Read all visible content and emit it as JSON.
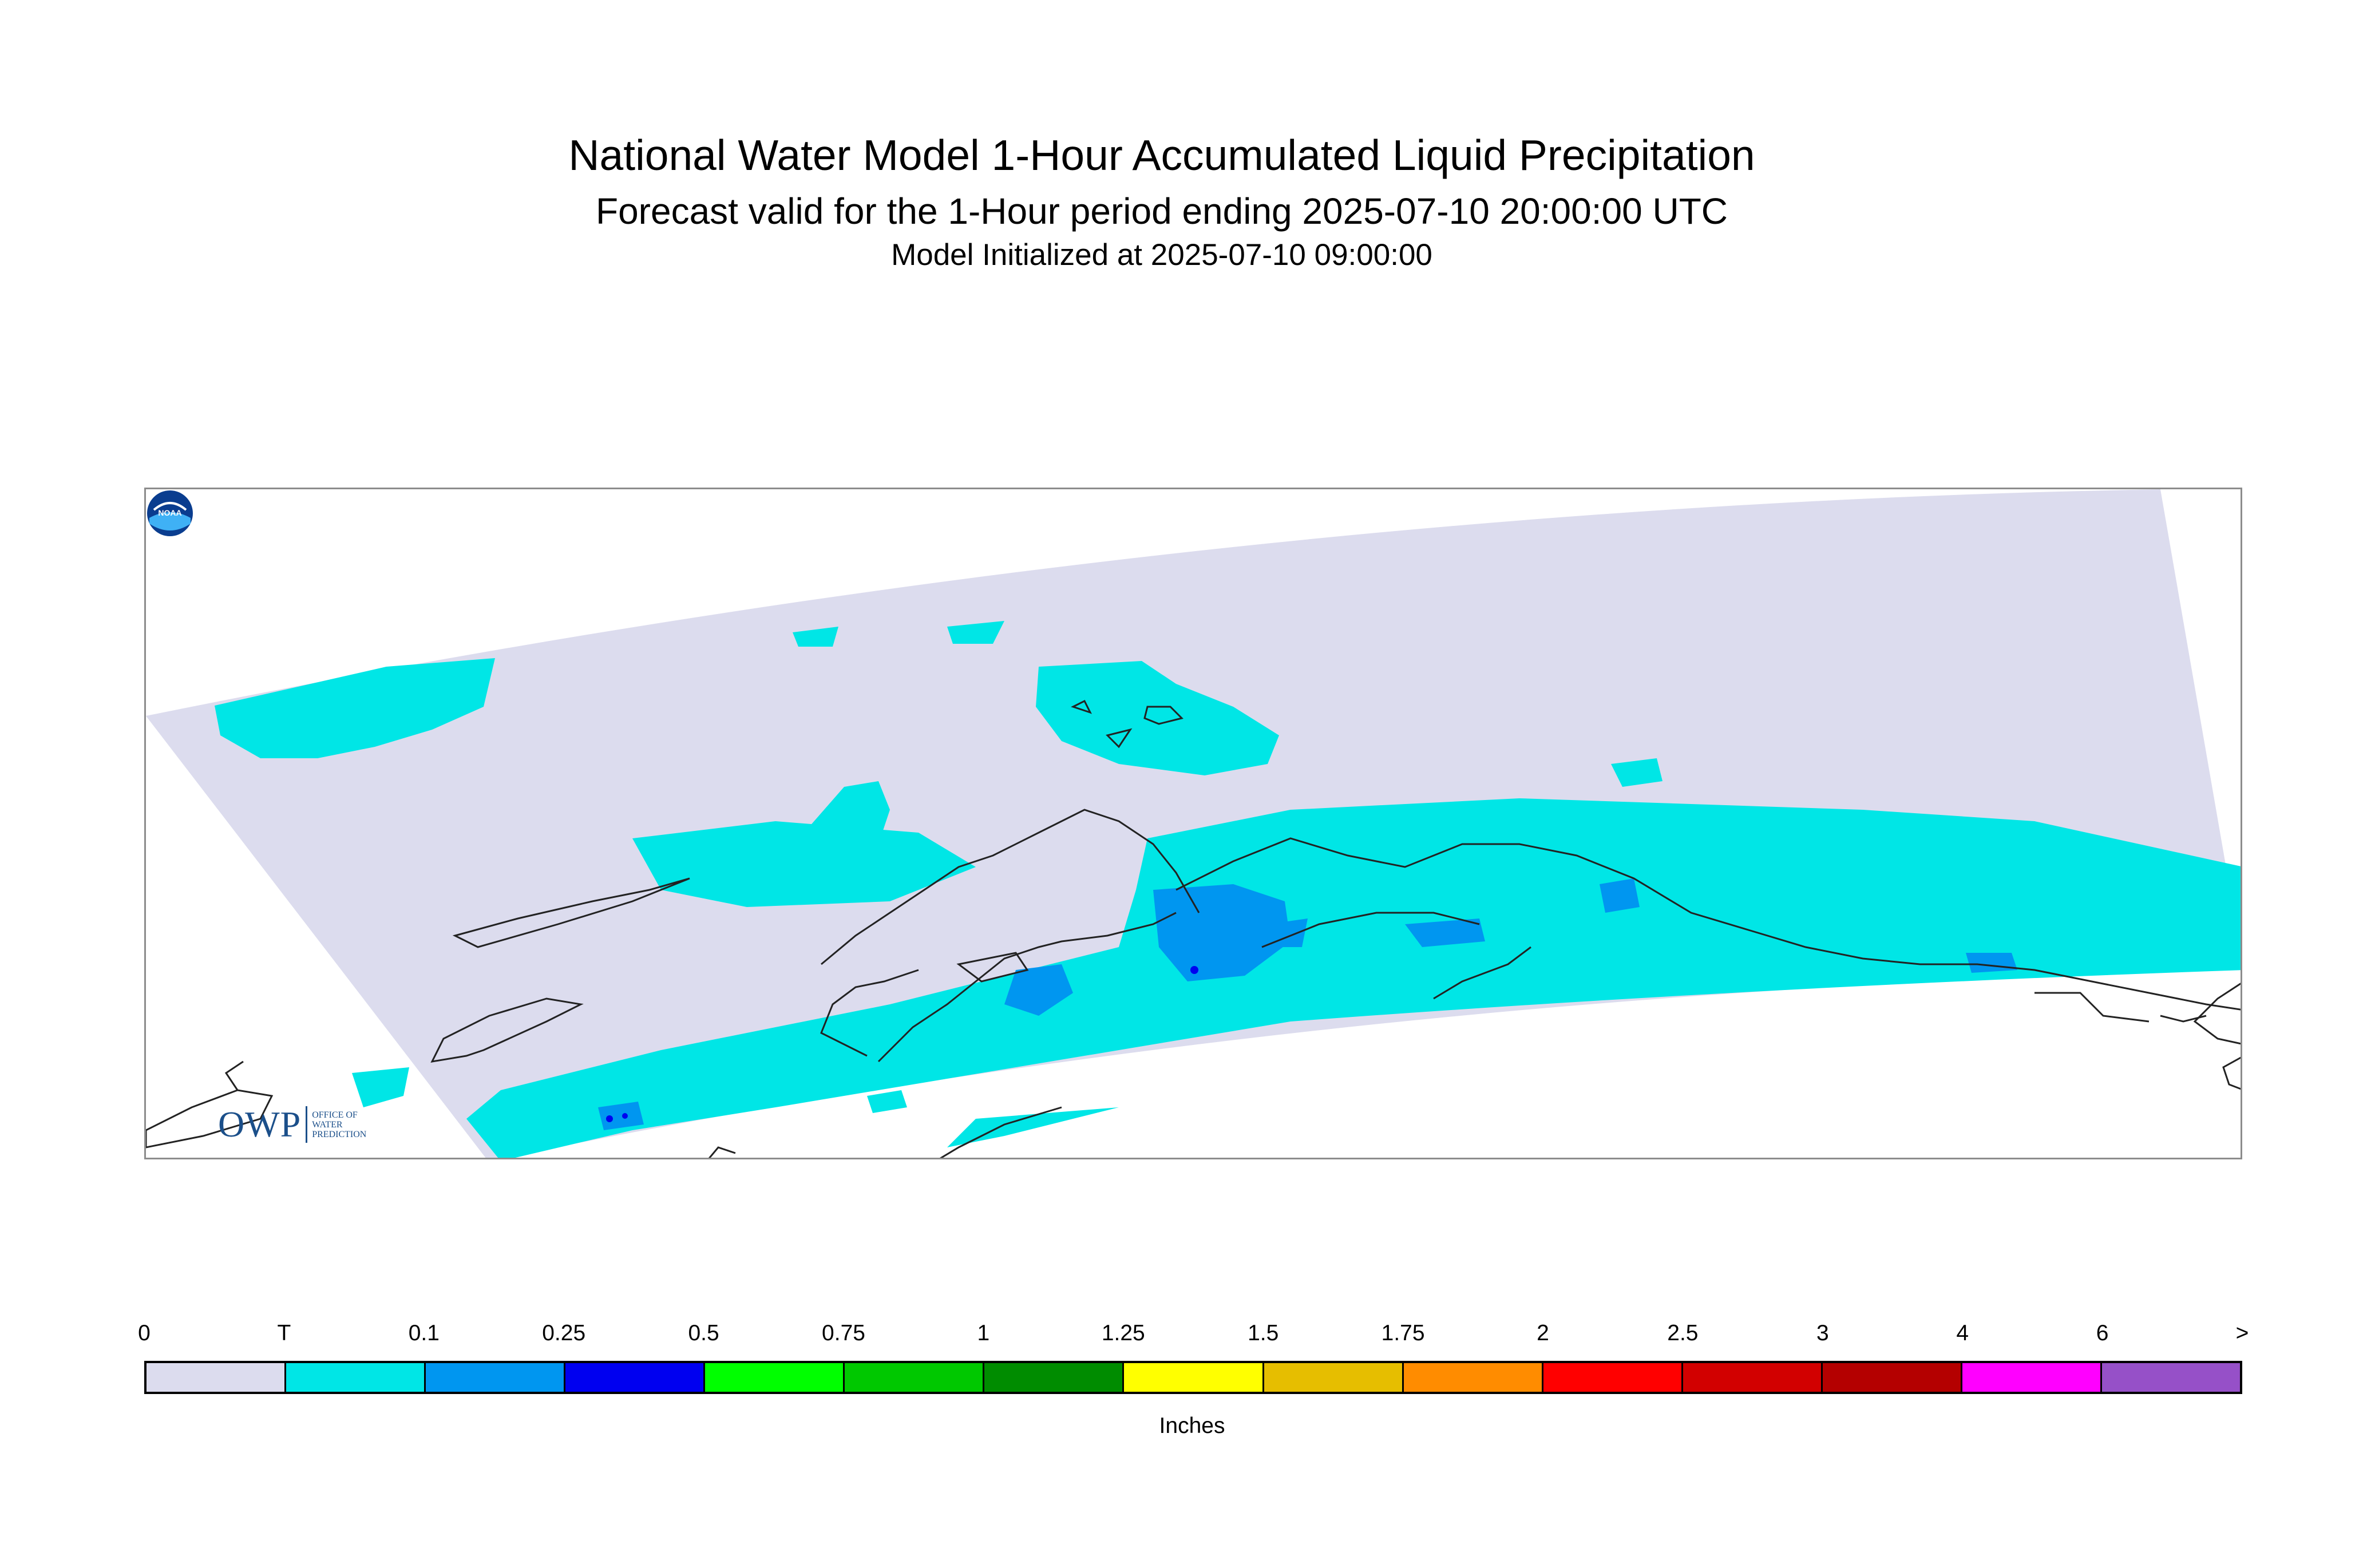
{
  "header": {
    "title": "National Water Model 1-Hour Accumulated Liquid Precipitation",
    "subtitle": "Forecast valid for the 1-Hour period ending 2025-07-10 20:00:00 UTC",
    "init_line": "Model Initialized at 2025-07-10 09:00:00"
  },
  "logos": {
    "owp_mark": "OWP",
    "owp_subtext": [
      "OFFICE OF",
      "WATER",
      "PREDICTION"
    ],
    "noaa_text": "NOAA"
  },
  "map": {
    "domain_color": "#dcdcee",
    "coastline_color": "#222222"
  },
  "legend": {
    "ticks": [
      "0",
      "T",
      "0.1",
      "0.25",
      "0.5",
      "0.75",
      "1",
      "1.25",
      "1.5",
      "1.75",
      "2",
      "2.5",
      "3",
      "4",
      "6",
      ">"
    ],
    "colors": [
      "#dcdcee",
      "#00e6e6",
      "#0096f0",
      "#0000f0",
      "#00ff00",
      "#00c800",
      "#008c00",
      "#ffff00",
      "#e6be00",
      "#ff8c00",
      "#ff0000",
      "#d20000",
      "#b40000",
      "#ff00ff",
      "#9650c8"
    ],
    "units": "Inches"
  }
}
